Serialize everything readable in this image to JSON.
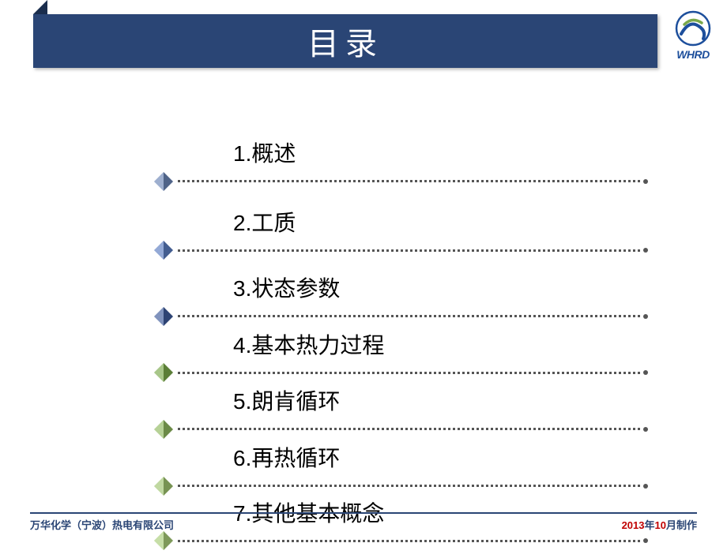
{
  "header": {
    "title": "目录",
    "bg_color": "#2a4575",
    "text_color": "#ffffff",
    "title_fontsize": 40
  },
  "logo": {
    "text": "WHRD",
    "brand_color": "#1d4f9c"
  },
  "toc": {
    "label_fontsize": 28,
    "label_color": "#000000",
    "dot_color": "#555555",
    "items": [
      {
        "label": "1.概述",
        "diamond_color": "#6a85b6"
      },
      {
        "label": "2.工质",
        "diamond_color": "#5a7cc0"
      },
      {
        "label": "3.状态参数",
        "diamond_color": "#3d5a9a"
      },
      {
        "label": "4.基本热力过程",
        "diamond_color": "#7aa84a"
      },
      {
        "label": "5.朗肯循环",
        "diamond_color": "#8fb85f"
      },
      {
        "label": "6.再热循环",
        "diamond_color": "#9fc46f"
      },
      {
        "label": "7.其他基本概念",
        "diamond_color": "#a8cc78"
      }
    ]
  },
  "footer": {
    "left": "万华化学（宁波）热电有限公司",
    "right_prefix": "2013",
    "right_mid": "年",
    "right_num": "10",
    "right_suffix": "月制作",
    "line_color": "#2a4575",
    "text_color": "#2a4575",
    "accent_color": "#c00000"
  }
}
